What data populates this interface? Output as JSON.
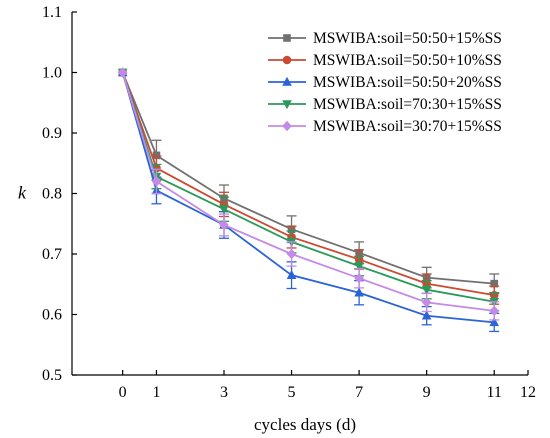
{
  "chart_data": {
    "type": "line",
    "xlabel": "cycles days (d)",
    "ylabel": "k",
    "xlim": [
      -1.5,
      12
    ],
    "ylim": [
      0.5,
      1.1
    ],
    "x_ticks": [
      0,
      1,
      3,
      5,
      7,
      9,
      11,
      12
    ],
    "y_ticks": [
      0.5,
      0.6,
      0.7,
      0.8,
      0.9,
      1.0,
      1.1
    ],
    "y_tick_labels": [
      "0.5",
      "0.6",
      "0.7",
      "0.8",
      "0.9",
      "1.0",
      "1.1"
    ],
    "x": [
      0,
      1,
      3,
      5,
      7,
      9,
      11
    ],
    "legend_position": "top-right",
    "series": [
      {
        "name": "MSWIBA:soil=50:50+15%SS",
        "color": "#707070",
        "marker": "square",
        "values": [
          1.0,
          0.863,
          0.792,
          0.741,
          0.702,
          0.661,
          0.651
        ],
        "errors": [
          0,
          0.025,
          0.022,
          0.022,
          0.018,
          0.017,
          0.016
        ]
      },
      {
        "name": "MSWIBA:soil=50:50+10%SS",
        "color": "#cc4a33",
        "marker": "circle",
        "values": [
          1.0,
          0.842,
          0.782,
          0.728,
          0.691,
          0.651,
          0.632
        ],
        "errors": [
          0,
          0.02,
          0.02,
          0.018,
          0.016,
          0.016,
          0.015
        ]
      },
      {
        "name": "MSWIBA:soil=50:50+20%SS",
        "color": "#2a64d6",
        "marker": "triangle-up",
        "values": [
          1.0,
          0.805,
          0.748,
          0.665,
          0.636,
          0.598,
          0.587
        ],
        "errors": [
          0,
          0.022,
          0.022,
          0.022,
          0.02,
          0.015,
          0.015
        ]
      },
      {
        "name": "MSWIBA:soil=70:30+15%SS",
        "color": "#2a9a5a",
        "marker": "triangle-down",
        "values": [
          1.0,
          0.828,
          0.774,
          0.72,
          0.68,
          0.641,
          0.621
        ],
        "errors": [
          0,
          0.02,
          0.02,
          0.018,
          0.016,
          0.015,
          0.015
        ]
      },
      {
        "name": "MSWIBA:soil=30:70+15%SS",
        "color": "#c58ae6",
        "marker": "diamond",
        "values": [
          1.0,
          0.82,
          0.748,
          0.7,
          0.66,
          0.62,
          0.606
        ],
        "errors": [
          0,
          0.02,
          0.018,
          0.02,
          0.016,
          0.015,
          0.015
        ]
      }
    ]
  }
}
